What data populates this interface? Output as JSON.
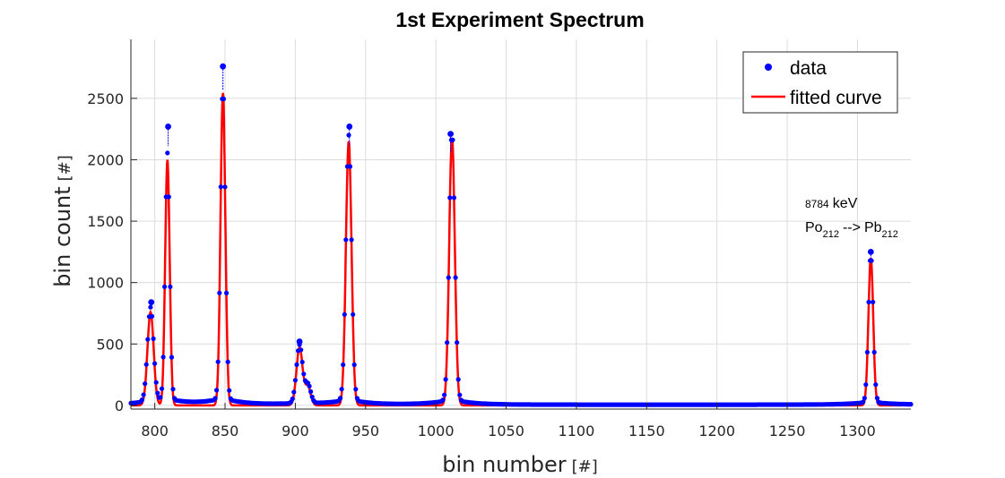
{
  "chart_data": {
    "type": "scatter",
    "title": "1st Experiment Spectrum",
    "xlabel": "bin number",
    "xlabel_unit": "[#]",
    "ylabel": "bin count",
    "ylabel_unit": "[#]",
    "xlim": [
      783,
      1338
    ],
    "ylim": [
      -30,
      2980
    ],
    "grid": true,
    "legend_position": "top-right",
    "xticks": [
      800,
      850,
      900,
      950,
      1000,
      1050,
      1100,
      1150,
      1200,
      1250,
      1300
    ],
    "yticks": [
      0,
      500,
      1000,
      1500,
      2000,
      2500
    ],
    "legend": {
      "data": "data",
      "fit": "fitted curve"
    },
    "colors": {
      "data": "#0000ff",
      "fit": "#ff0000",
      "grid": "#dcdcdc",
      "axis": "#262626"
    },
    "annotation": {
      "energy_value": "8784",
      "energy_unit": "keV",
      "parent": "Po",
      "parent_sub": "212",
      "arrow": "-->",
      "daughter": "Pb",
      "daughter_sub": "212"
    },
    "peaks": [
      {
        "center": 797,
        "amplitude": 760,
        "sigma": 2.2
      },
      {
        "center": 809,
        "amplitude": 2000,
        "sigma": 1.6
      },
      {
        "center": 848.5,
        "amplitude": 2545,
        "sigma": 1.7
      },
      {
        "center": 903,
        "amplitude": 470,
        "sigma": 2.2
      },
      {
        "center": 909,
        "amplitude": 150,
        "sigma": 2.0
      },
      {
        "center": 938,
        "amplitude": 2150,
        "sigma": 2.0
      },
      {
        "center": 1011.5,
        "amplitude": 2180,
        "sigma": 2.0
      },
      {
        "center": 1309.5,
        "amplitude": 1200,
        "sigma": 1.7
      }
    ],
    "highlighted_points": [
      {
        "x": 848.5,
        "y": 2760
      },
      {
        "x": 809.5,
        "y": 2270
      },
      {
        "x": 938.5,
        "y": 2270
      },
      {
        "x": 1010.5,
        "y": 2210
      },
      {
        "x": 1309.5,
        "y": 1250
      },
      {
        "x": 797.5,
        "y": 840
      },
      {
        "x": 903,
        "y": 520
      }
    ]
  }
}
